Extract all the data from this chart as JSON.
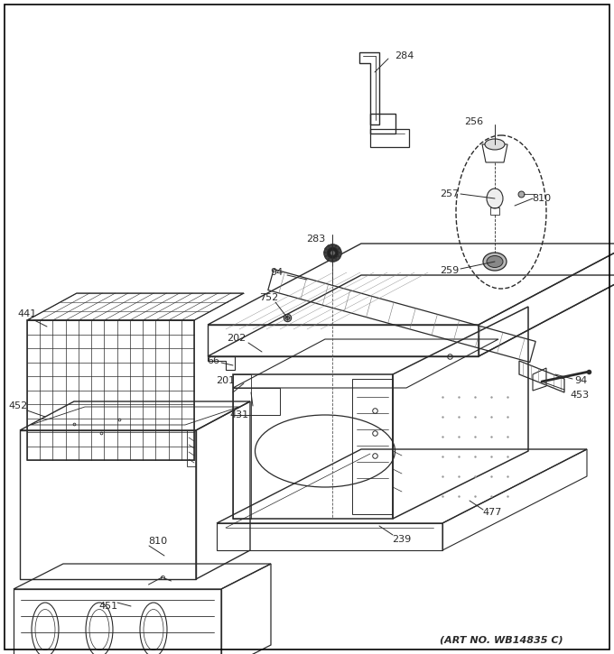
{
  "background_color": "#ffffff",
  "border_color": "#000000",
  "art_no_text": "(ART NO. WB14835 C)",
  "line_color": "#2a2a2a",
  "figsize": [
    6.8,
    7.25
  ],
  "dpi": 100
}
